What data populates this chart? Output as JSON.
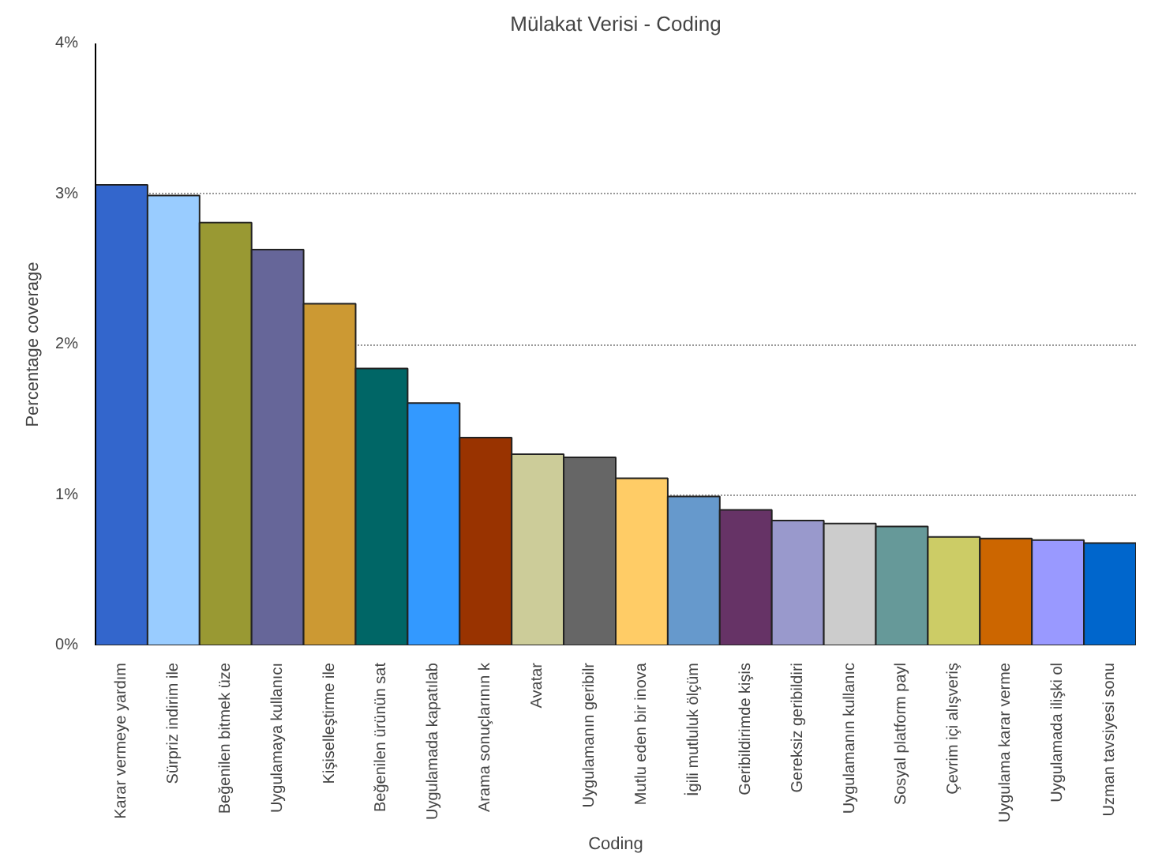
{
  "chart_data": {
    "type": "bar",
    "title": "Mülakat Verisi - Coding",
    "xlabel": "Coding",
    "ylabel": "Percentage coverage",
    "categories": [
      "Karar vermeye yardım",
      "Sürpriz indirim ile",
      "Beğenilen bitmek üze",
      "Uygulamaya kullanıcı",
      "Kişiselleştirme ile",
      "Beğenilen ürünün sat",
      "Uygulamada kapatılab",
      "Arama sonuçlarının k",
      "Avatar",
      "Uygulamanın geribilr",
      "Mutlu eden bir inova",
      "İgili mutluluk ölçüm",
      "Geribildirimde kişis",
      "Gereksiz geribildiri",
      "Uygulamanın kullanıc",
      "Sosyal platform payl",
      "Çevrim içi alışveriş",
      "Uygulama karar verme",
      "Uygulamada ilişki ol",
      "Uzman tavsiyesi sonu"
    ],
    "values": [
      3.06,
      2.99,
      2.81,
      2.63,
      2.27,
      1.84,
      1.61,
      1.38,
      1.27,
      1.25,
      1.11,
      0.99,
      0.9,
      0.83,
      0.81,
      0.79,
      0.72,
      0.71,
      0.7,
      0.68
    ],
    "colors": [
      "#3366cc",
      "#99ccff",
      "#999933",
      "#666699",
      "#cc9933",
      "#006666",
      "#3399ff",
      "#993300",
      "#cccc99",
      "#666666",
      "#ffcc66",
      "#6699cc",
      "#663366",
      "#9999cc",
      "#cccccc",
      "#669999",
      "#cccc66",
      "#cc6600",
      "#9999ff",
      "#0066cc"
    ],
    "ylim": [
      0,
      4
    ],
    "yticks": [
      {
        "value": 0,
        "label": "0%"
      },
      {
        "value": 1,
        "label": "1%"
      },
      {
        "value": 2,
        "label": "2%"
      },
      {
        "value": 3,
        "label": "3%"
      },
      {
        "value": 4,
        "label": "4%"
      }
    ],
    "grid": "y"
  }
}
